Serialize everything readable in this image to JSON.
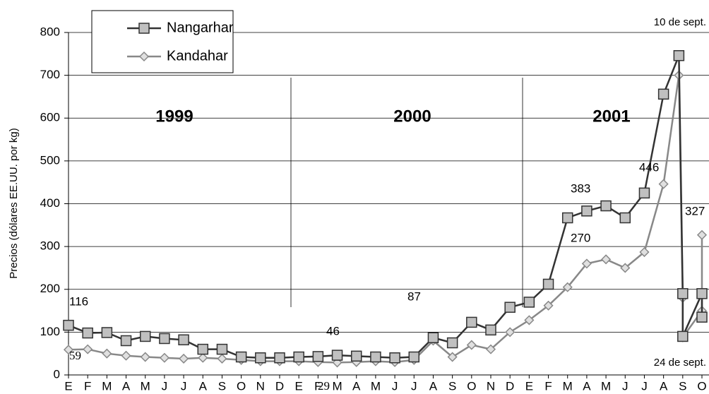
{
  "chart_data": {
    "type": "line",
    "y_label": "Precios (dólares EE.UU. por kg)",
    "ylim": [
      0,
      800
    ],
    "yticks": [
      0,
      100,
      200,
      300,
      400,
      500,
      600,
      700,
      800
    ],
    "xlim": [
      0,
      33
    ],
    "xticks": [
      {
        "value": 0,
        "label": "E"
      },
      {
        "value": 1,
        "label": "F"
      },
      {
        "value": 2,
        "label": "M"
      },
      {
        "value": 3,
        "label": "A"
      },
      {
        "value": 4,
        "label": "M"
      },
      {
        "value": 5,
        "label": "J"
      },
      {
        "value": 6,
        "label": "J"
      },
      {
        "value": 7,
        "label": "A"
      },
      {
        "value": 8,
        "label": "S"
      },
      {
        "value": 9,
        "label": "O"
      },
      {
        "value": 10,
        "label": "N"
      },
      {
        "value": 11,
        "label": "D"
      },
      {
        "value": 12,
        "label": "E"
      },
      {
        "value": 13,
        "label": "F"
      },
      {
        "value": 14,
        "label": "M"
      },
      {
        "value": 15,
        "label": "A"
      },
      {
        "value": 16,
        "label": "M"
      },
      {
        "value": 17,
        "label": "J"
      },
      {
        "value": 18,
        "label": "J"
      },
      {
        "value": 19,
        "label": "A"
      },
      {
        "value": 20,
        "label": "S"
      },
      {
        "value": 21,
        "label": "O"
      },
      {
        "value": 22,
        "label": "N"
      },
      {
        "value": 23,
        "label": "D"
      },
      {
        "value": 24,
        "label": "E"
      },
      {
        "value": 25,
        "label": "F"
      },
      {
        "value": 26,
        "label": "M"
      },
      {
        "value": 27,
        "label": "A"
      },
      {
        "value": 28,
        "label": "M"
      },
      {
        "value": 29,
        "label": "J"
      },
      {
        "value": 30,
        "label": "J"
      },
      {
        "value": 31,
        "label": "A"
      },
      {
        "value": 32,
        "label": "S"
      },
      {
        "value": 33,
        "label": "O"
      }
    ],
    "years": [
      "1999",
      "2000",
      "2001"
    ],
    "grid": true,
    "series": [
      {
        "name": "Nangarhar",
        "color": "#333333",
        "marker": "square",
        "x": [
          0,
          1,
          2,
          3,
          4,
          5,
          6,
          7,
          8,
          9,
          10,
          11,
          12,
          13,
          14,
          15,
          16,
          17,
          18,
          19,
          20,
          21,
          22,
          23,
          24,
          25,
          26,
          27,
          28,
          29,
          30,
          31,
          31.8,
          32,
          32,
          33,
          33
        ],
        "values": [
          116,
          98,
          99,
          80,
          90,
          85,
          82,
          60,
          60,
          42,
          40,
          40,
          42,
          43,
          46,
          44,
          42,
          40,
          42,
          87,
          75,
          123,
          105,
          158,
          170,
          212,
          367,
          383,
          395,
          367,
          425,
          656,
          746,
          190,
          90,
          190,
          135
        ]
      },
      {
        "name": "Kandahar",
        "color": "#888888",
        "marker": "diamond",
        "x": [
          0,
          1,
          2,
          3,
          4,
          5,
          6,
          7,
          8,
          9,
          10,
          11,
          12,
          13,
          14,
          15,
          16,
          17,
          18,
          19,
          20,
          21,
          22,
          23,
          24,
          25,
          26,
          27,
          28,
          29,
          30,
          31,
          31.8,
          32,
          32,
          33,
          33
        ],
        "values": [
          59,
          60,
          50,
          45,
          42,
          40,
          38,
          40,
          38,
          35,
          32,
          32,
          32,
          30,
          29,
          30,
          32,
          30,
          35,
          80,
          42,
          70,
          60,
          100,
          128,
          162,
          205,
          260,
          270,
          250,
          287,
          446,
          700,
          180,
          88,
          150,
          327
        ]
      }
    ],
    "annotations": [
      "116",
      "59",
      "46",
      "29",
      "87",
      "383",
      "270",
      "446",
      "327",
      "10 de sept.",
      "24 de sept."
    ]
  }
}
